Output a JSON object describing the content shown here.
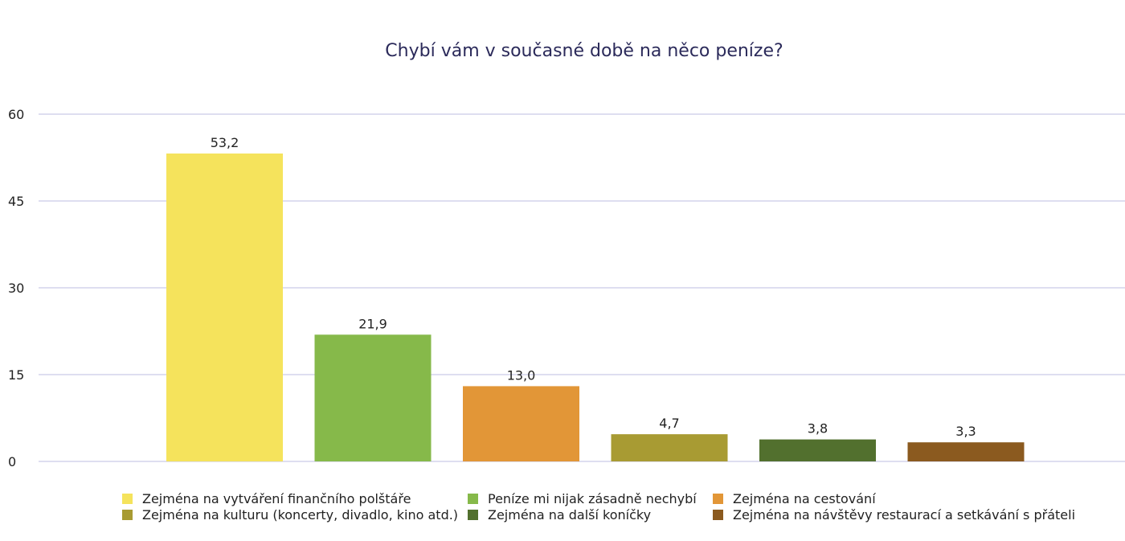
{
  "chart_data": {
    "type": "bar",
    "title": "Chybí vám v současné době na něco peníze?",
    "xlabel": "",
    "ylabel": "",
    "ylim": [
      0,
      60
    ],
    "yticks": [
      "0",
      "15",
      "30",
      "45",
      "60"
    ],
    "grid": true,
    "legend_position": "bottom",
    "series": [
      {
        "name": "Zejména na vytváření finančního polštáře",
        "value": 53.2,
        "label": "53,2",
        "color": "#f5e35c"
      },
      {
        "name": "Peníze mi nijak zásadně nechybí",
        "value": 21.9,
        "label": "21,9",
        "color": "#86b94a"
      },
      {
        "name": "Zejména na cestování",
        "value": 13.0,
        "label": "13,0",
        "color": "#e29637"
      },
      {
        "name": "Zejména na kulturu (koncerty, divadlo, kino atd.)",
        "value": 4.7,
        "label": "4,7",
        "color": "#a89b33"
      },
      {
        "name": "Zejména na další koníčky",
        "value": 3.8,
        "label": "3,8",
        "color": "#52702e"
      },
      {
        "name": "Zejména na návštěvy restaurací a setkávání s přáteli",
        "value": 3.3,
        "label": "3,3",
        "color": "#8b5a1f"
      }
    ]
  }
}
